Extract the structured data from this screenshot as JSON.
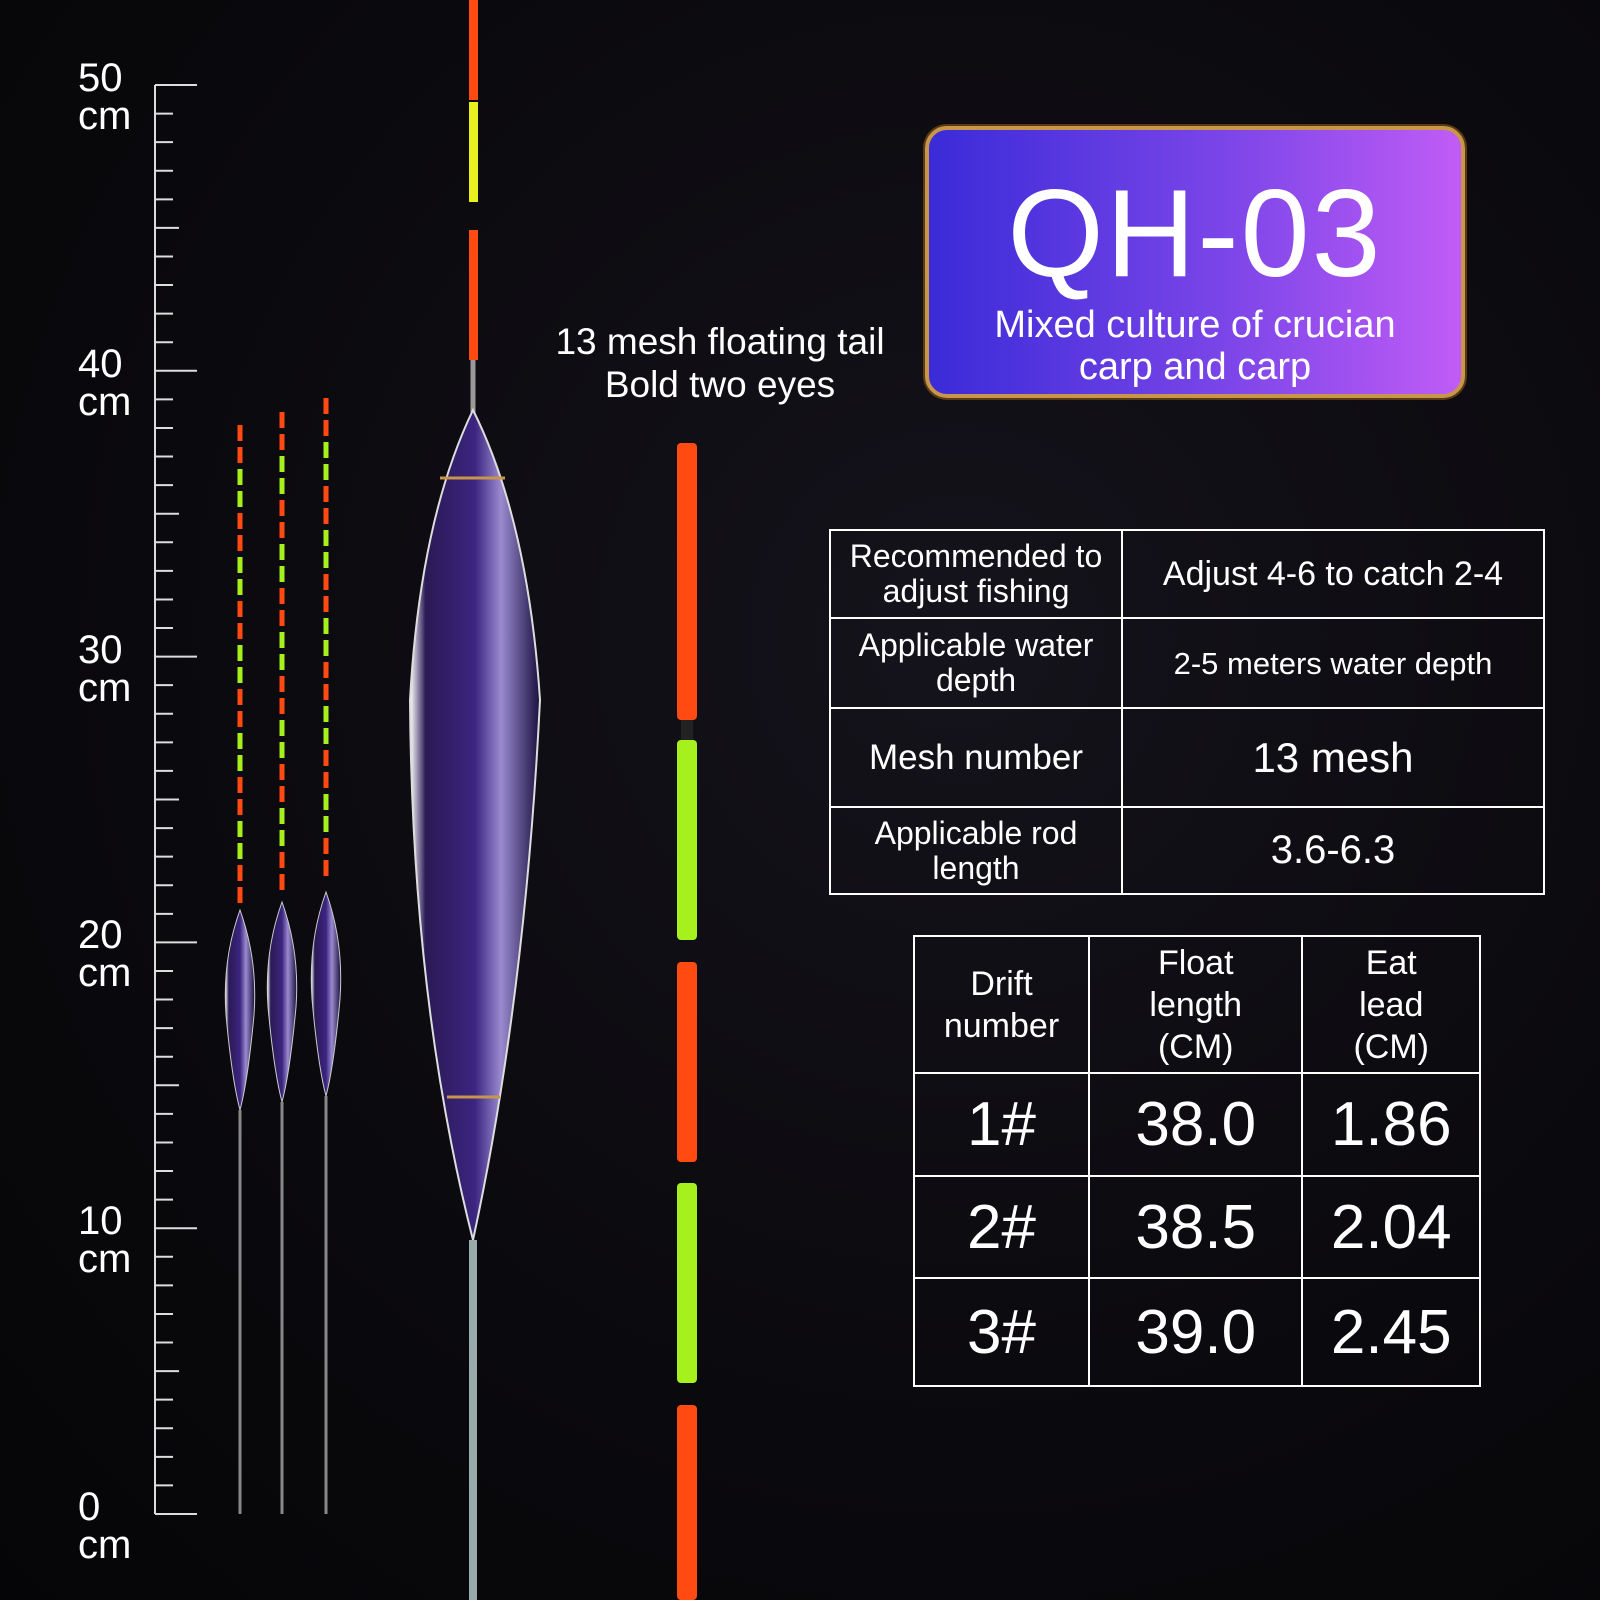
{
  "ruler": {
    "labels": [
      {
        "value": "50",
        "unit": "cm"
      },
      {
        "value": "40",
        "unit": "cm"
      },
      {
        "value": "30",
        "unit": "cm"
      },
      {
        "value": "20",
        "unit": "cm"
      },
      {
        "value": "10",
        "unit": "cm"
      },
      {
        "value": "0",
        "unit": "cm"
      }
    ]
  },
  "header": {
    "model": "QH-03",
    "subtitle_line1": "Mixed culture of crucian",
    "subtitle_line2": "carp and carp"
  },
  "caption": {
    "line1": "13 mesh floating tail",
    "line2": "Bold two eyes"
  },
  "specs": [
    {
      "label": "Recommended to adjust fishing",
      "value": "Adjust 4-6 to catch 2-4"
    },
    {
      "label": "Applicable water depth",
      "value": "2-5 meters water depth"
    },
    {
      "label": "Mesh number",
      "value": "13 mesh"
    },
    {
      "label": "Applicable rod length",
      "value": "3.6-6.3"
    }
  ],
  "sizes": {
    "headers": [
      "Drift number",
      "Float length (CM)",
      "Eat lead (CM)"
    ],
    "rows": [
      [
        "1#",
        "38.0",
        "1.86"
      ],
      [
        "2#",
        "38.5",
        "2.04"
      ],
      [
        "3#",
        "39.0",
        "2.45"
      ]
    ]
  },
  "colors": {
    "orange": "#ff4a12",
    "green": "#a6f01e",
    "badge_start": "#3a2bd8",
    "badge_end": "#c05cf6",
    "gold": "#c8964a"
  }
}
